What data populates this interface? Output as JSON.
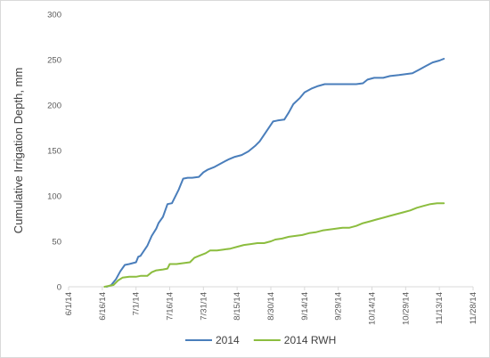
{
  "chart_data": {
    "type": "line",
    "title": "",
    "xlabel": "",
    "ylabel": "Cumulative Irrigation Depth, mm",
    "x_tick_labels": [
      "6/1/14",
      "6/16/14",
      "7/1/14",
      "7/16/14",
      "7/31/14",
      "8/15/14",
      "8/30/14",
      "9/14/14",
      "9/29/14",
      "10/14/14",
      "10/29/14",
      "11/13/14",
      "11/28/14"
    ],
    "x_range": [
      "2014-06-01",
      "2014-11-28"
    ],
    "y_tick_labels": [
      "0",
      "50",
      "100",
      "150",
      "200",
      "250",
      "300"
    ],
    "ylim": [
      0,
      300
    ],
    "grid": false,
    "legend_position": "bottom",
    "series": [
      {
        "name": "2014",
        "color": "#4a7ebb",
        "points": [
          [
            "2014-06-18",
            0
          ],
          [
            "2014-06-20",
            2
          ],
          [
            "2014-06-22",
            8
          ],
          [
            "2014-06-24",
            17
          ],
          [
            "2014-06-26",
            24
          ],
          [
            "2014-06-28",
            25
          ],
          [
            "2014-07-01",
            27
          ],
          [
            "2014-07-02",
            33
          ],
          [
            "2014-07-03",
            34
          ],
          [
            "2014-07-06",
            45
          ],
          [
            "2014-07-08",
            56
          ],
          [
            "2014-07-10",
            64
          ],
          [
            "2014-07-11",
            70
          ],
          [
            "2014-07-13",
            77
          ],
          [
            "2014-07-15",
            91
          ],
          [
            "2014-07-17",
            92
          ],
          [
            "2014-07-20",
            107
          ],
          [
            "2014-07-22",
            119
          ],
          [
            "2014-07-24",
            120
          ],
          [
            "2014-07-26",
            120
          ],
          [
            "2014-07-29",
            121
          ],
          [
            "2014-07-31",
            126
          ],
          [
            "2014-08-02",
            129
          ],
          [
            "2014-08-05",
            132
          ],
          [
            "2014-08-08",
            136
          ],
          [
            "2014-08-11",
            140
          ],
          [
            "2014-08-14",
            143
          ],
          [
            "2014-08-17",
            145
          ],
          [
            "2014-08-20",
            149
          ],
          [
            "2014-08-23",
            155
          ],
          [
            "2014-08-25",
            160
          ],
          [
            "2014-08-28",
            171
          ],
          [
            "2014-08-31",
            182
          ],
          [
            "2014-09-02",
            183
          ],
          [
            "2014-09-05",
            184
          ],
          [
            "2014-09-07",
            192
          ],
          [
            "2014-09-09",
            201
          ],
          [
            "2014-09-12",
            208
          ],
          [
            "2014-09-14",
            214
          ],
          [
            "2014-09-17",
            218
          ],
          [
            "2014-09-20",
            221
          ],
          [
            "2014-09-23",
            223
          ],
          [
            "2014-09-26",
            223
          ],
          [
            "2014-09-30",
            223
          ],
          [
            "2014-10-04",
            223
          ],
          [
            "2014-10-07",
            223
          ],
          [
            "2014-10-10",
            224
          ],
          [
            "2014-10-12",
            228
          ],
          [
            "2014-10-15",
            230
          ],
          [
            "2014-10-19",
            230
          ],
          [
            "2014-10-22",
            232
          ],
          [
            "2014-10-26",
            233
          ],
          [
            "2014-10-29",
            234
          ],
          [
            "2014-11-01",
            235
          ],
          [
            "2014-11-04",
            239
          ],
          [
            "2014-11-07",
            243
          ],
          [
            "2014-11-10",
            247
          ],
          [
            "2014-11-13",
            249
          ],
          [
            "2014-11-15",
            251
          ]
        ]
      },
      {
        "name": "2014 RWH",
        "color": "#8cbd3f",
        "points": [
          [
            "2014-06-17",
            0
          ],
          [
            "2014-06-19",
            1
          ],
          [
            "2014-06-21",
            2
          ],
          [
            "2014-06-23",
            7
          ],
          [
            "2014-06-25",
            10
          ],
          [
            "2014-06-28",
            11
          ],
          [
            "2014-07-01",
            11
          ],
          [
            "2014-07-03",
            12
          ],
          [
            "2014-07-06",
            12
          ],
          [
            "2014-07-08",
            16
          ],
          [
            "2014-07-10",
            18
          ],
          [
            "2014-07-13",
            19
          ],
          [
            "2014-07-15",
            20
          ],
          [
            "2014-07-16",
            25
          ],
          [
            "2014-07-19",
            25
          ],
          [
            "2014-07-22",
            26
          ],
          [
            "2014-07-25",
            27
          ],
          [
            "2014-07-27",
            32
          ],
          [
            "2014-07-29",
            34
          ],
          [
            "2014-08-01",
            37
          ],
          [
            "2014-08-03",
            40
          ],
          [
            "2014-08-06",
            40
          ],
          [
            "2014-08-09",
            41
          ],
          [
            "2014-08-12",
            42
          ],
          [
            "2014-08-15",
            44
          ],
          [
            "2014-08-18",
            46
          ],
          [
            "2014-08-21",
            47
          ],
          [
            "2014-08-24",
            48
          ],
          [
            "2014-08-27",
            48
          ],
          [
            "2014-08-30",
            50
          ],
          [
            "2014-09-01",
            52
          ],
          [
            "2014-09-04",
            53
          ],
          [
            "2014-09-07",
            55
          ],
          [
            "2014-09-10",
            56
          ],
          [
            "2014-09-13",
            57
          ],
          [
            "2014-09-16",
            59
          ],
          [
            "2014-09-19",
            60
          ],
          [
            "2014-09-22",
            62
          ],
          [
            "2014-09-25",
            63
          ],
          [
            "2014-09-28",
            64
          ],
          [
            "2014-10-01",
            65
          ],
          [
            "2014-10-04",
            65
          ],
          [
            "2014-10-07",
            67
          ],
          [
            "2014-10-10",
            70
          ],
          [
            "2014-10-13",
            72
          ],
          [
            "2014-10-16",
            74
          ],
          [
            "2014-10-19",
            76
          ],
          [
            "2014-10-22",
            78
          ],
          [
            "2014-10-25",
            80
          ],
          [
            "2014-10-28",
            82
          ],
          [
            "2014-10-31",
            84
          ],
          [
            "2014-11-03",
            87
          ],
          [
            "2014-11-06",
            89
          ],
          [
            "2014-11-09",
            91
          ],
          [
            "2014-11-12",
            92
          ],
          [
            "2014-11-15",
            92
          ]
        ]
      }
    ]
  }
}
